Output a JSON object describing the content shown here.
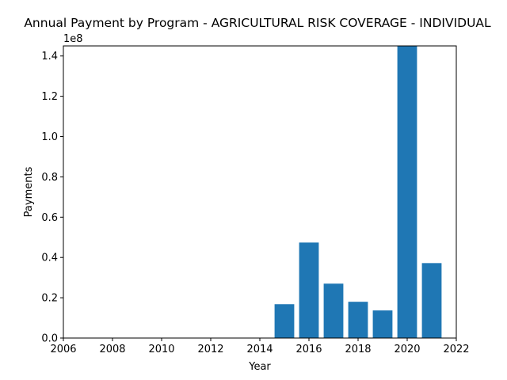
{
  "chart_data": {
    "type": "bar",
    "title": "Annual Payment by Program - AGRICULTURAL RISK COVERAGE - INDIVIDUAL",
    "xlabel": "Year",
    "ylabel": "Payments",
    "y_offset_label": "1e8",
    "xlim": [
      2006,
      2022
    ],
    "ylim": [
      0,
      1.45
    ],
    "x_ticks": [
      "2006",
      "2008",
      "2010",
      "2012",
      "2014",
      "2016",
      "2018",
      "2020",
      "2022"
    ],
    "y_ticks": [
      "0.0",
      "0.2",
      "0.4",
      "0.6",
      "0.8",
      "1.0",
      "1.2",
      "1.4"
    ],
    "bar_color": "#1f77b4",
    "grid": false,
    "x": [
      2015,
      2016,
      2017,
      2018,
      2019,
      2020,
      2021
    ],
    "values": [
      0.168,
      0.474,
      0.27,
      0.18,
      0.137,
      1.45,
      0.372
    ]
  }
}
